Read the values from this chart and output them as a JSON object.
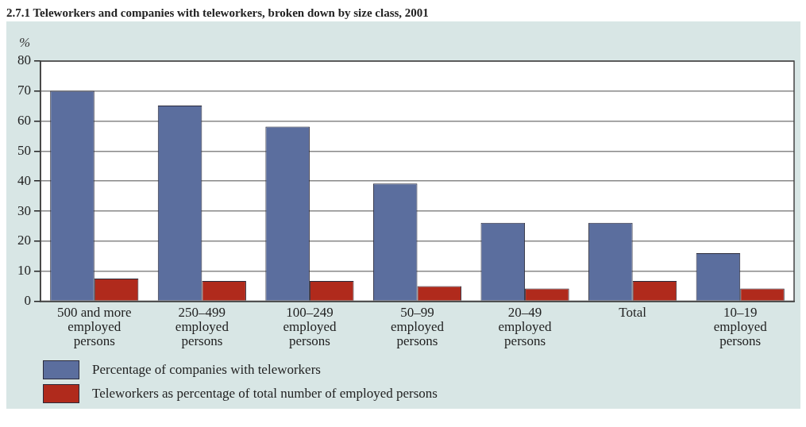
{
  "chart_data": {
    "type": "bar",
    "title": "2.7.1 Teleworkers and companies with teleworkers, broken down by size class, 2001",
    "ylabel": "%",
    "categories": [
      "500 and more\nemployed\npersons",
      "250–499\nemployed\npersons",
      "100–249\nemployed\npersons",
      "50–99\nemployed\npersons",
      "20–49\nemployed\npersons",
      "Total",
      "10–19\nemployed\npersons"
    ],
    "series": [
      {
        "name": "Percentage of companies with teleworkers",
        "color": "#5b6e9e",
        "values": [
          70.1,
          65.2,
          58.2,
          39.2,
          26.1,
          26.1,
          16.0
        ]
      },
      {
        "name": "Teleworkers as percentage of total number of employed persons",
        "color": "#b02a1c",
        "values": [
          7.5,
          6.7,
          6.7,
          5.0,
          4.2,
          6.7,
          4.2
        ]
      }
    ],
    "ylim": [
      0,
      80
    ],
    "yticks": [
      0,
      10,
      20,
      30,
      40,
      50,
      60,
      70,
      80
    ],
    "grid": "y",
    "legend": "bottom"
  }
}
